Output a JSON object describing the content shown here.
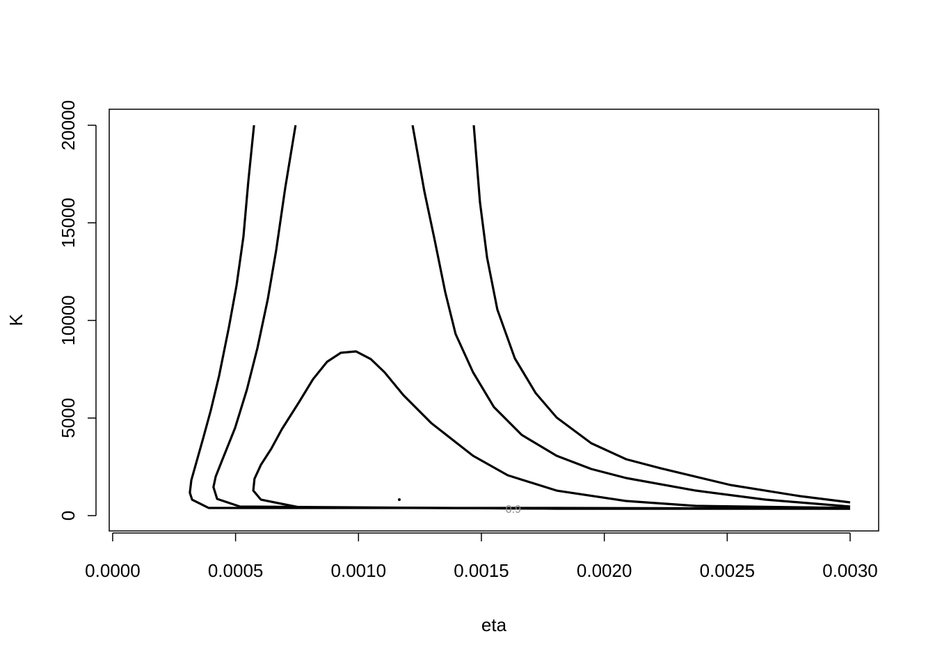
{
  "chart_data": {
    "type": "contour",
    "x_label": "eta",
    "y_label": "K",
    "xlim": [
      -1.4e-05,
      0.003116
    ],
    "ylim": [
      -784,
      20820
    ],
    "xticks": [
      {
        "value": 0,
        "label": "0.0000"
      },
      {
        "value": 0.0005,
        "label": "0.0005"
      },
      {
        "value": 0.001,
        "label": "0.0010"
      },
      {
        "value": 0.0015,
        "label": "0.0015"
      },
      {
        "value": 0.002,
        "label": "0.0020"
      },
      {
        "value": 0.0025,
        "label": "0.0025"
      },
      {
        "value": 0.003,
        "label": "0.0030"
      }
    ],
    "yticks": [
      0,
      5000,
      10000,
      15000,
      20000
    ],
    "color": "#000000",
    "lines": [
      {
        "x": [
          0.000575,
          0.000552,
          0.000532,
          0.000504,
          0.000473,
          0.000433,
          0.000399,
          0.000368,
          0.00034,
          0.00032,
          0.000314,
          0.000323,
          0.000391,
          0.001806,
          0.003,
          null,
          0.003,
          0.002796,
          0.002513,
          0.00223,
          0.002089,
          0.001947,
          0.001806,
          0.001721,
          0.001636,
          0.001565,
          0.001523,
          0.001494,
          0.001469
        ],
        "y": [
          20000,
          17148,
          14296,
          11800,
          9661,
          7166,
          5383,
          3957,
          2709,
          1818,
          1176,
          820,
          392,
          392,
          357,
          null,
          677,
          998,
          1569,
          2424,
          2888,
          3708,
          5027,
          6274,
          8057,
          10552,
          13226,
          16078,
          20000
        ]
      },
      {
        "x": [
          0.000744,
          0.000702,
          0.000665,
          0.000631,
          0.000589,
          0.000546,
          0.000498,
          0.000447,
          0.000419,
          0.00041,
          0.000425,
          0.000518,
          0.001806,
          0.003,
          null,
          0.003,
          0.002655,
          0.002372,
          0.002089,
          0.001947,
          0.001806,
          0.001664,
          0.001551,
          0.001466,
          0.001395,
          0.001353,
          0.00131,
          0.001268,
          0.00122
        ],
        "y": [
          20000,
          16791,
          13583,
          11087,
          8592,
          6453,
          4492,
          2888,
          1996,
          1462,
          856,
          463,
          357,
          357,
          null,
          463,
          820,
          1283,
          1925,
          2389,
          3066,
          4135,
          5561,
          7344,
          9305,
          11444,
          14117,
          16613,
          20000
        ]
      },
      {
        "x": [
          0.003,
          0.001806,
          0.000758,
          0.000603,
          0.000572,
          0.000577,
          0.000603,
          0.000645,
          0.000688,
          0.000758,
          0.000815,
          0.000872,
          0.000928,
          0.00099,
          0.00105,
          0.001106,
          0.001183,
          0.001296,
          0.001466,
          0.001607,
          0.001806,
          0.002089,
          0.002372,
          0.003
        ],
        "y": [
          357,
          357,
          428,
          820,
          1283,
          1889,
          2602,
          3422,
          4421,
          5811,
          6987,
          7879,
          8342,
          8413,
          8021,
          7344,
          6167,
          4741,
          3066,
          2068,
          1283,
          749,
          499,
          392
        ]
      }
    ],
    "point": {
      "x": 0.001166,
      "y": 820
    },
    "annotation": {
      "text": "0.9",
      "x": 0.00163,
      "y": 285
    }
  }
}
